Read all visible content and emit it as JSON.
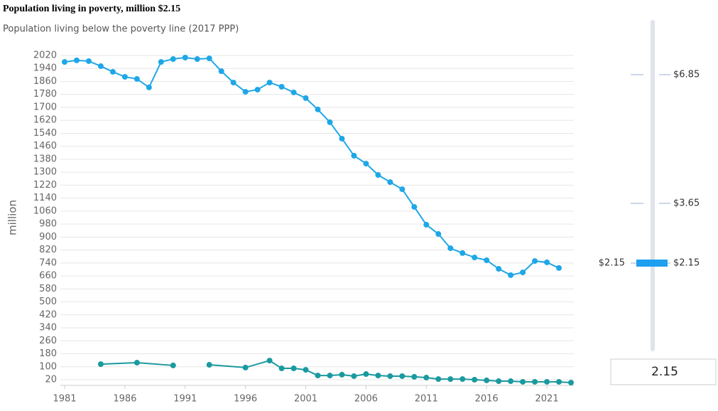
{
  "chart_data": {
    "type": "line",
    "title": "Population living in poverty, million $2.15",
    "subtitle": "Population living below the poverty line (2017 PPP)",
    "y_label": "million",
    "ylim": [
      20,
      2020
    ],
    "yticks": [
      20,
      100,
      180,
      260,
      340,
      420,
      500,
      580,
      660,
      740,
      820,
      900,
      980,
      1060,
      1140,
      1220,
      1300,
      1380,
      1460,
      1540,
      1620,
      1700,
      1780,
      1860,
      1940,
      2020
    ],
    "xlim": [
      1981,
      2023
    ],
    "xticks": [
      1981,
      1986,
      1991,
      1996,
      2001,
      2006,
      2011,
      2016,
      2021
    ],
    "grid": true,
    "series": [
      {
        "color": "#1ea7e8",
        "x": [
          1981,
          1982,
          1983,
          1984,
          1985,
          1986,
          1987,
          1988,
          1989,
          1990,
          1991,
          1992,
          1993,
          1994,
          1995,
          1996,
          1997,
          1998,
          1999,
          2000,
          2001,
          2002,
          2003,
          2004,
          2005,
          2006,
          2007,
          2008,
          2009,
          2010,
          2011,
          2012,
          2013,
          2014,
          2015,
          2016,
          2017,
          2018,
          2019,
          2020,
          2021,
          2022
        ],
        "values": [
          1980,
          1990,
          1985,
          1954,
          1919,
          1888,
          1875,
          1823,
          1980,
          1998,
          2007,
          1998,
          2002,
          1923,
          1853,
          1796,
          1809,
          1853,
          1827,
          1792,
          1757,
          1687,
          1608,
          1507,
          1402,
          1353,
          1283,
          1239,
          1195,
          1086,
          976,
          919,
          831,
          801,
          774,
          757,
          704,
          665,
          682,
          752,
          744,
          709
        ]
      },
      {
        "color": "#1a9a9f",
        "x": [
          1984,
          1987,
          1990,
          1991,
          1993,
          1996,
          1998,
          1999,
          2000,
          2001,
          2002,
          2003,
          2004,
          2005,
          2006,
          2007,
          2008,
          2009,
          2010,
          2011,
          2012,
          2013,
          2014,
          2015,
          2016,
          2017,
          2018,
          2019,
          2020,
          2021,
          2022,
          2023
        ],
        "values": [
          116,
          125,
          108,
          null,
          112,
          95,
          138,
          90,
          90,
          81,
          46,
          46,
          51,
          42,
          55,
          46,
          42,
          42,
          38,
          33,
          24,
          24,
          24,
          20,
          16,
          11,
          11,
          7,
          7,
          7,
          7,
          2
        ]
      }
    ]
  },
  "slider": {
    "options": [
      "$6.85",
      "$3.65",
      "$2.15"
    ],
    "selected_label": "$2.15",
    "input_value": "2.15"
  }
}
